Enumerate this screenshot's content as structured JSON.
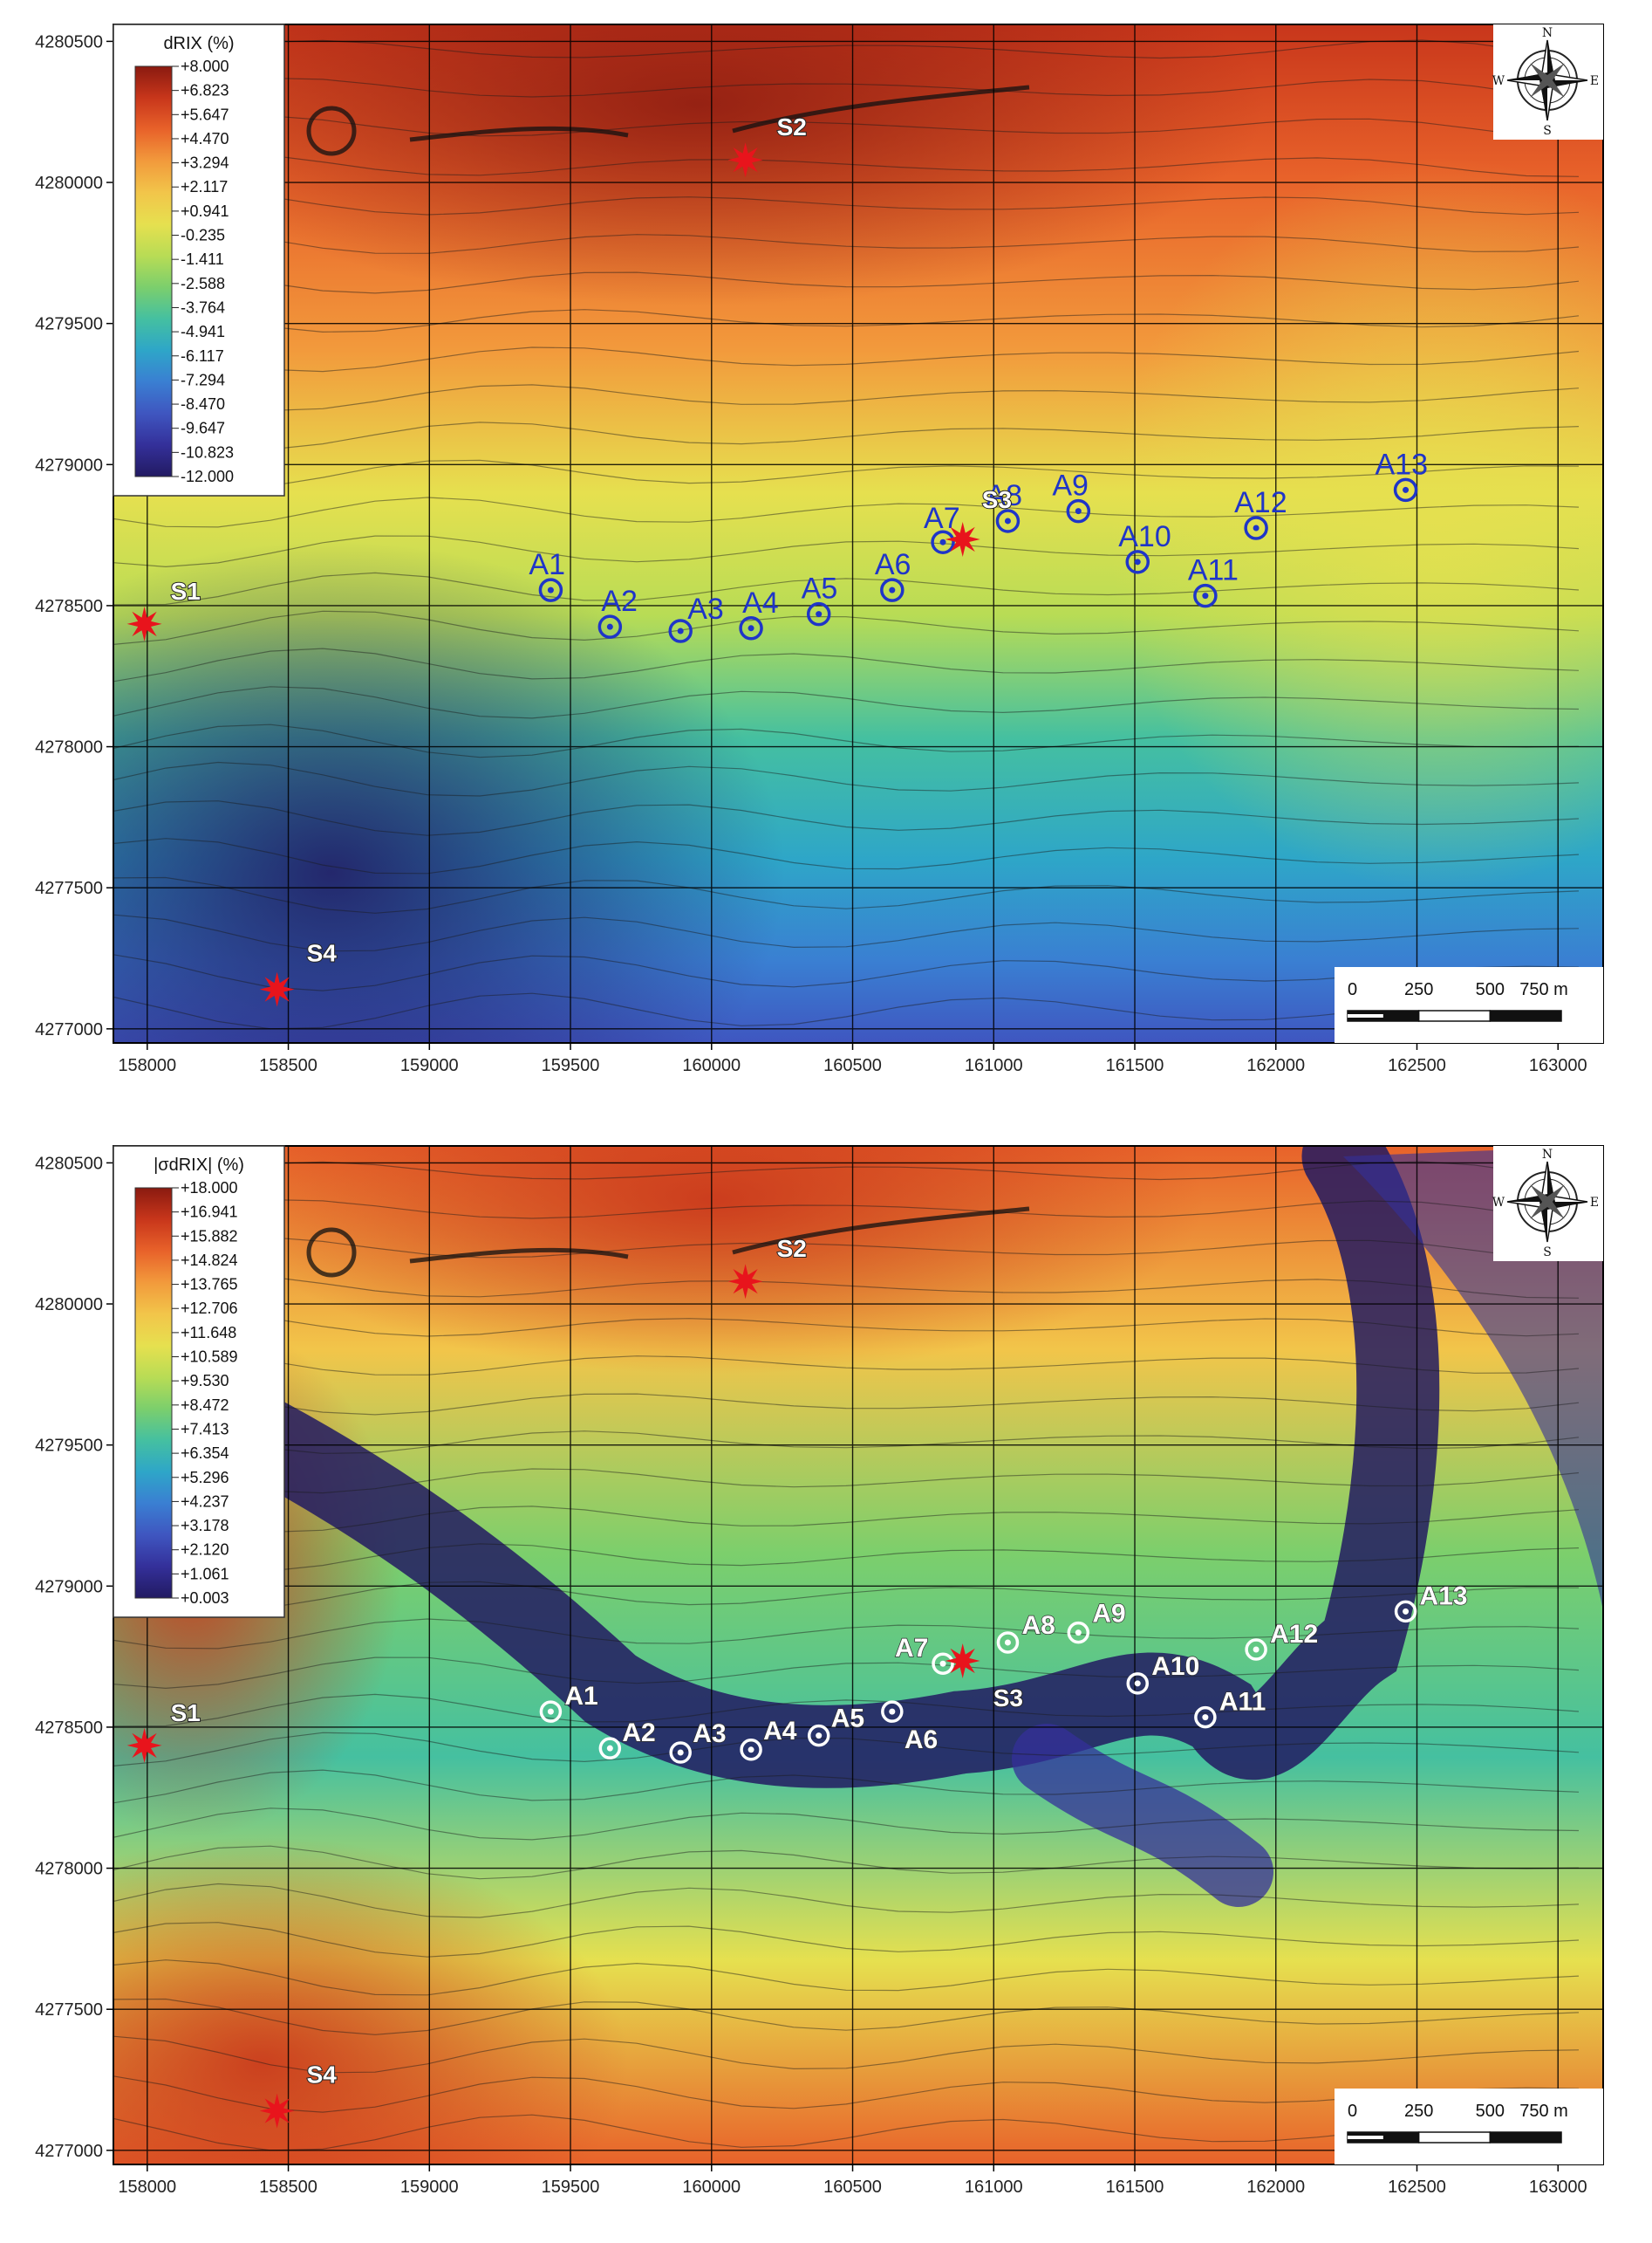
{
  "x_ticks": [
    "158000",
    "158500",
    "159000",
    "159500",
    "160000",
    "160500",
    "161000",
    "161500",
    "162000",
    "162500",
    "163000"
  ],
  "y_ticks": [
    "4280500",
    "4280000",
    "4279500",
    "4279000",
    "4278500",
    "4278000",
    "4277500",
    "4277000"
  ],
  "compass": {
    "n": "N",
    "s": "S",
    "e": "E",
    "w": "W"
  },
  "scale_bar": {
    "labels": [
      "0",
      "250",
      "500",
      "750 m"
    ]
  },
  "sources": [
    {
      "id": "S1",
      "x": 157990,
      "y": 4278435
    },
    {
      "id": "S2",
      "x": 160120,
      "y": 4280080
    },
    {
      "id": "S3",
      "x": 160890,
      "y": 4278735
    },
    {
      "id": "S4",
      "x": 158460,
      "y": 4277140
    }
  ],
  "stations": [
    {
      "id": "A1",
      "x": 159430,
      "y": 4278555
    },
    {
      "id": "A2",
      "x": 159640,
      "y": 4278425
    },
    {
      "id": "A3",
      "x": 159890,
      "y": 4278410
    },
    {
      "id": "A4",
      "x": 160140,
      "y": 4278420
    },
    {
      "id": "A5",
      "x": 160380,
      "y": 4278470
    },
    {
      "id": "A6",
      "x": 160640,
      "y": 4278555
    },
    {
      "id": "A7",
      "x": 160820,
      "y": 4278725
    },
    {
      "id": "A8",
      "x": 161050,
      "y": 4278800
    },
    {
      "id": "A9",
      "x": 161300,
      "y": 4278835
    },
    {
      "id": "A10",
      "x": 161510,
      "y": 4278655
    },
    {
      "id": "A11",
      "x": 161750,
      "y": 4278535
    },
    {
      "id": "A12",
      "x": 161930,
      "y": 4278775
    },
    {
      "id": "A13",
      "x": 162460,
      "y": 4278910
    }
  ],
  "panels": [
    {
      "legend_title": "dRIX (%)",
      "legend_values": [
        "+8.000",
        "+6.823",
        "+5.647",
        "+4.470",
        "+3.294",
        "+2.117",
        "+0.941",
        "-0.235",
        "-1.411",
        "-2.588",
        "-3.764",
        "-4.941",
        "-6.117",
        "-7.294",
        "-8.470",
        "-9.647",
        "-10.823",
        "-12.000"
      ],
      "station_color": "#1f35c8"
    },
    {
      "legend_title": "|σdRIX| (%)",
      "legend_values": [
        "+18.000",
        "+16.941",
        "+15.882",
        "+14.824",
        "+13.765",
        "+12.706",
        "+11.648",
        "+10.589",
        "+9.530",
        "+8.472",
        "+7.413",
        "+6.354",
        "+5.296",
        "+4.237",
        "+3.178",
        "+2.120",
        "+1.061",
        "+0.003"
      ],
      "station_color": "#ffffff"
    }
  ],
  "colors": {
    "source_marker": "#e8141c",
    "ramp": [
      "#8a1a10",
      "#c8361b",
      "#e8622a",
      "#f29a3c",
      "#f2c54a",
      "#e6e04f",
      "#b8dc55",
      "#7ccf6c",
      "#45c0a0",
      "#2ea6c8",
      "#3a7fd2",
      "#3f56c0",
      "#34309a",
      "#221a62"
    ]
  }
}
